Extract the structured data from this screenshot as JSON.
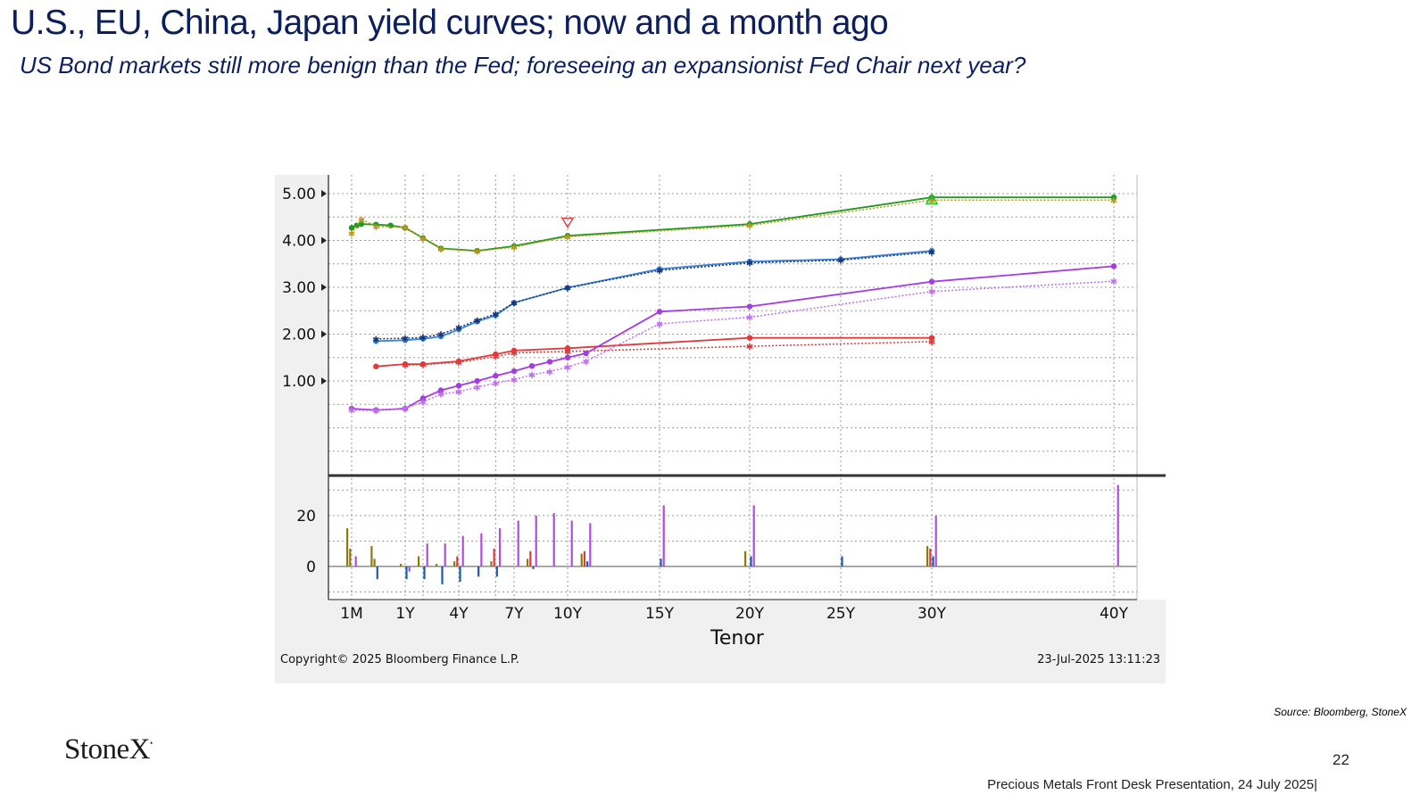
{
  "slide": {
    "title": "U.S., EU, China, Japan yield curves; now and a month ago",
    "subtitle": "US Bond markets still more benign than the Fed; foreseeing  an expansionist Fed Chair next year?",
    "source": "Source: Bloomberg, StoneX",
    "logo": "StoneX",
    "page_number": "22",
    "footer": "Precious Metals Front Desk Presentation, 24 July 2025|"
  },
  "chart_data": {
    "type": "line",
    "xlabel": "Tenor",
    "copyright": "Copyright© 2025 Bloomberg Finance L.P.",
    "timestamp": "23-Jul-2025 13:11:23",
    "x_ticks": [
      {
        "label": "1M",
        "t": 0.083
      },
      {
        "label": "1Y",
        "t": 1
      },
      {
        "label": "4Y",
        "t": 4
      },
      {
        "label": "7Y",
        "t": 7
      },
      {
        "label": "10Y",
        "t": 10
      },
      {
        "label": "15Y",
        "t": 15
      },
      {
        "label": "20Y",
        "t": 20
      },
      {
        "label": "25Y",
        "t": 25
      },
      {
        "label": "30Y",
        "t": 30
      },
      {
        "label": "40Y",
        "t": 40
      }
    ],
    "upper": {
      "yticks": [
        "1.00",
        "2.00",
        "3.00",
        "4.00",
        "5.00"
      ],
      "ylim": [
        -1.0,
        5.4
      ],
      "series": [
        {
          "color": "#1e9a1e",
          "style": "solid",
          "points": [
            [
              0.083,
              4.27
            ],
            [
              0.17,
              4.32
            ],
            [
              0.25,
              4.35
            ],
            [
              0.5,
              4.34
            ],
            [
              0.75,
              4.32
            ],
            [
              1,
              4.27
            ],
            [
              2,
              4.05
            ],
            [
              3,
              3.83
            ],
            [
              5,
              3.78
            ],
            [
              7,
              3.88
            ],
            [
              10,
              4.1
            ],
            [
              20,
              4.35
            ],
            [
              30,
              4.92
            ],
            [
              40,
              4.92
            ]
          ]
        },
        {
          "color": "#b89a20",
          "style": "dotted",
          "points": [
            [
              0.083,
              4.15
            ],
            [
              0.25,
              4.45
            ],
            [
              0.5,
              4.3
            ],
            [
              1,
              4.28
            ],
            [
              2,
              4.04
            ],
            [
              3,
              3.82
            ],
            [
              5,
              3.77
            ],
            [
              7,
              3.86
            ],
            [
              10,
              4.08
            ],
            [
              20,
              4.32
            ],
            [
              30,
              4.86
            ],
            [
              40,
              4.86
            ]
          ]
        },
        {
          "color": "#3a82db",
          "style": "solid",
          "points": [
            [
              0.5,
              1.85
            ],
            [
              1,
              1.87
            ],
            [
              2,
              1.9
            ],
            [
              3,
              1.95
            ],
            [
              4,
              2.1
            ],
            [
              5,
              2.27
            ],
            [
              6,
              2.4
            ],
            [
              7,
              2.67
            ],
            [
              10,
              2.99
            ],
            [
              15,
              3.39
            ],
            [
              20,
              3.55
            ],
            [
              25,
              3.6
            ],
            [
              30,
              3.78
            ]
          ]
        },
        {
          "color": "#14357a",
          "style": "dotted",
          "points": [
            [
              0.5,
              1.9
            ],
            [
              1,
              1.91
            ],
            [
              2,
              1.93
            ],
            [
              3,
              2.0
            ],
            [
              4,
              2.14
            ],
            [
              5,
              2.3
            ],
            [
              6,
              2.43
            ],
            [
              7,
              2.67
            ],
            [
              10,
              2.99
            ],
            [
              15,
              3.36
            ],
            [
              20,
              3.52
            ],
            [
              25,
              3.58
            ],
            [
              30,
              3.75
            ]
          ]
        },
        {
          "color": "#e03a3a",
          "style": "solid",
          "points": [
            [
              0.5,
              1.31
            ],
            [
              1,
              1.36
            ],
            [
              2,
              1.36
            ],
            [
              4,
              1.42
            ],
            [
              6,
              1.57
            ],
            [
              7,
              1.65
            ],
            [
              10,
              1.7
            ],
            [
              20,
              1.92
            ],
            [
              30,
              1.92
            ]
          ]
        },
        {
          "color": "#e03a3a",
          "style": "dotted",
          "points": [
            [
              1,
              1.34
            ],
            [
              2,
              1.35
            ],
            [
              4,
              1.4
            ],
            [
              6,
              1.52
            ],
            [
              7,
              1.6
            ],
            [
              10,
              1.63
            ],
            [
              20,
              1.74
            ],
            [
              30,
              1.84
            ]
          ]
        },
        {
          "color": "#a53be0",
          "style": "solid",
          "points": [
            [
              0.083,
              0.41
            ],
            [
              0.5,
              0.38
            ],
            [
              1,
              0.41
            ],
            [
              2,
              0.63
            ],
            [
              3,
              0.8
            ],
            [
              4,
              0.9
            ],
            [
              5,
              1.0
            ],
            [
              6,
              1.11
            ],
            [
              7,
              1.21
            ],
            [
              8,
              1.32
            ],
            [
              9,
              1.41
            ],
            [
              10,
              1.5
            ],
            [
              11,
              1.59
            ],
            [
              15,
              2.48
            ],
            [
              20,
              2.59
            ],
            [
              30,
              3.12
            ],
            [
              40,
              3.45
            ]
          ]
        },
        {
          "color": "#c06ef0",
          "style": "dotted",
          "points": [
            [
              0.083,
              0.38
            ],
            [
              0.5,
              0.37
            ],
            [
              1,
              0.42
            ],
            [
              2,
              0.55
            ],
            [
              3,
              0.72
            ],
            [
              4,
              0.77
            ],
            [
              5,
              0.87
            ],
            [
              6,
              0.95
            ],
            [
              7,
              1.03
            ],
            [
              8,
              1.13
            ],
            [
              9,
              1.2
            ],
            [
              10,
              1.3
            ],
            [
              11,
              1.42
            ],
            [
              15,
              2.22
            ],
            [
              20,
              2.36
            ],
            [
              30,
              2.91
            ],
            [
              40,
              3.13
            ]
          ]
        }
      ],
      "markers": [
        {
          "t": 10,
          "y": 4.38,
          "color": "#e03a3a",
          "shape": "tri-down"
        },
        {
          "t": 30,
          "y": 4.88,
          "color": "#22c022",
          "shape": "tri-up"
        }
      ]
    },
    "lower": {
      "yticks": [
        "0",
        "20"
      ],
      "ylim": [
        -13,
        35
      ],
      "bars": [
        {
          "t": 0.083,
          "values": [
            15,
            7,
            0,
            4
          ],
          "colors": [
            "#8a7a10",
            "#8a7a10",
            "#1e5aa8",
            "#b04de0"
          ]
        },
        {
          "t": 0.5,
          "values": [
            8,
            3,
            -5,
            0
          ],
          "colors": [
            "#8a7a10",
            "#8a7a10",
            "#1e5aa8",
            "#b04de0"
          ]
        },
        {
          "t": 1,
          "values": [
            1,
            0,
            -5,
            -2
          ],
          "colors": [
            "#8a7a10",
            "#e03a3a",
            "#1e5aa8",
            "#b04de0"
          ]
        },
        {
          "t": 2,
          "values": [
            4,
            0,
            -5,
            9
          ],
          "colors": [
            "#8a7a10",
            "#e03a3a",
            "#1e5aa8",
            "#b04de0"
          ]
        },
        {
          "t": 3,
          "values": [
            1,
            0,
            -7,
            9
          ],
          "colors": [
            "#8a7a10",
            "#e03a3a",
            "#1e5aa8",
            "#b04de0"
          ]
        },
        {
          "t": 4,
          "values": [
            2,
            4,
            -6,
            12
          ],
          "colors": [
            "#8a7a10",
            "#e03a3a",
            "#1e5aa8",
            "#b04de0"
          ]
        },
        {
          "t": 5,
          "values": [
            0,
            0,
            -4,
            13
          ],
          "colors": [
            "#8a7a10",
            "#e03a3a",
            "#1e5aa8",
            "#b04de0"
          ]
        },
        {
          "t": 6,
          "values": [
            2,
            7,
            -4,
            15
          ],
          "colors": [
            "#8a7a10",
            "#e03a3a",
            "#1e5aa8",
            "#b04de0"
          ]
        },
        {
          "t": 7,
          "values": [
            0,
            0,
            0,
            18
          ],
          "colors": [
            "#8a7a10",
            "#e03a3a",
            "#1e5aa8",
            "#b04de0"
          ]
        },
        {
          "t": 8,
          "values": [
            3,
            6,
            -1,
            20
          ],
          "colors": [
            "#8a7a10",
            "#e03a3a",
            "#1e5aa8",
            "#b04de0"
          ]
        },
        {
          "t": 9,
          "values": [
            0,
            0,
            0,
            21
          ],
          "colors": [
            "#8a7a10",
            "#e03a3a",
            "#1e5aa8",
            "#b04de0"
          ]
        },
        {
          "t": 10,
          "values": [
            0,
            0,
            0,
            18
          ],
          "colors": [
            "#8a7a10",
            "#e03a3a",
            "#1e5aa8",
            "#b04de0"
          ]
        },
        {
          "t": 11,
          "values": [
            5,
            6,
            2,
            17
          ],
          "colors": [
            "#8a7a10",
            "#e03a3a",
            "#1e5aa8",
            "#b04de0"
          ]
        },
        {
          "t": 15,
          "values": [
            0,
            0,
            3,
            24
          ],
          "colors": [
            "#8a7a10",
            "#e03a3a",
            "#1e5aa8",
            "#b04de0"
          ]
        },
        {
          "t": 20,
          "values": [
            6,
            0,
            4,
            24
          ],
          "colors": [
            "#8a7a10",
            "#e03a3a",
            "#1e5aa8",
            "#b04de0"
          ]
        },
        {
          "t": 25,
          "values": [
            0,
            0,
            4,
            0
          ],
          "colors": [
            "#8a7a10",
            "#e03a3a",
            "#1e5aa8",
            "#b04de0"
          ]
        },
        {
          "t": 30,
          "values": [
            8,
            7,
            4,
            20
          ],
          "colors": [
            "#8a7a10",
            "#e03a3a",
            "#1e5aa8",
            "#b04de0"
          ]
        },
        {
          "t": 40,
          "values": [
            0,
            0,
            0,
            32
          ],
          "colors": [
            "#8a7a10",
            "#e03a3a",
            "#1e5aa8",
            "#b04de0"
          ]
        }
      ]
    }
  }
}
